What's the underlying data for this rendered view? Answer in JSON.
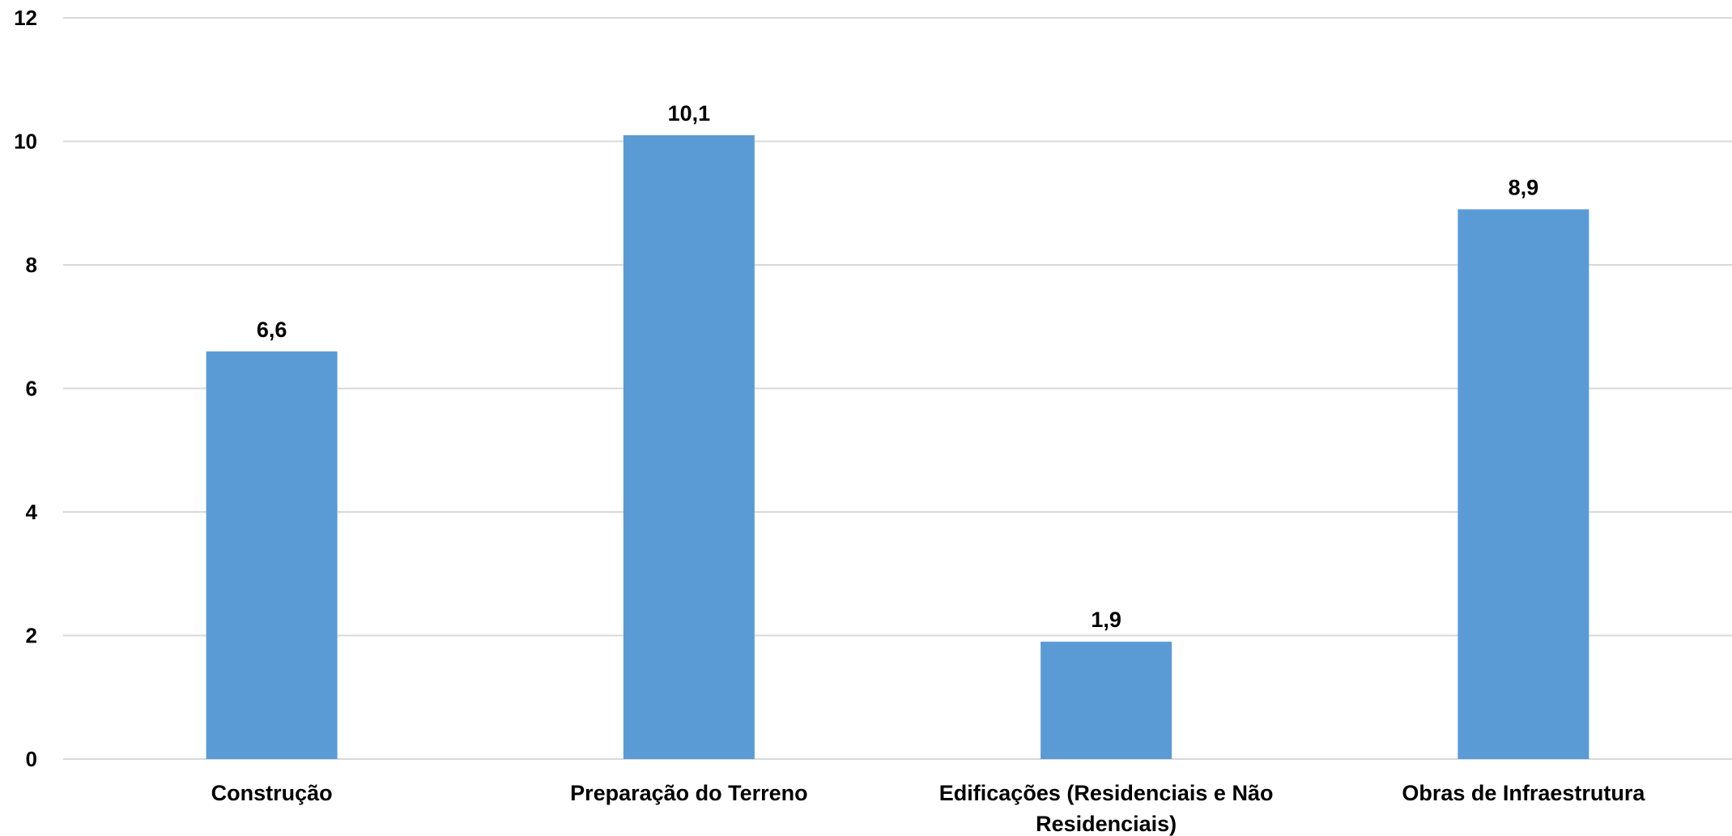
{
  "chart_data": {
    "type": "bar",
    "categories": [
      [
        "Construção"
      ],
      [
        "Preparação do Terreno"
      ],
      [
        "Edificações (Residenciais e Não",
        "Residenciais)"
      ],
      [
        "Obras de Infraestrutura"
      ]
    ],
    "values": [
      6.6,
      10.1,
      1.9,
      8.9
    ],
    "value_labels": [
      "6,6",
      "10,1",
      "1,9",
      "8,9"
    ],
    "ylim": [
      0,
      12
    ],
    "yticks": [
      0,
      2,
      4,
      6,
      8,
      10,
      12
    ],
    "title": "",
    "xlabel": "",
    "ylabel": "",
    "grid": true,
    "legend": "none",
    "colors": {
      "bar": "#5b9bd5",
      "grid": "#d9d9d9",
      "text": "#000000"
    }
  }
}
